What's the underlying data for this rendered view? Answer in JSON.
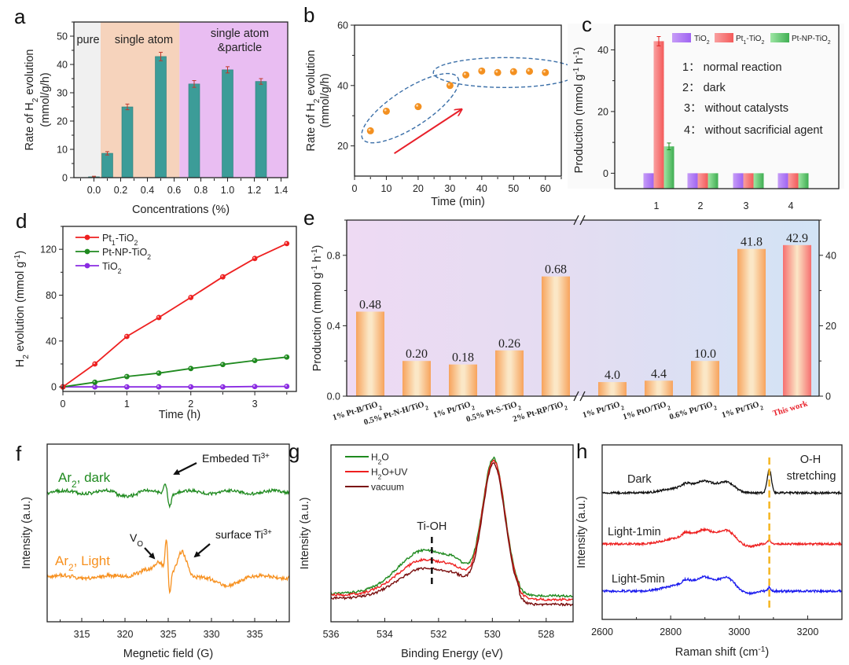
{
  "panels": [
    {
      "id": "a",
      "letter": "a",
      "chart_data": {
        "type": "bar",
        "title": "",
        "xlabel": "Concentrations (%)",
        "ylabel_line1": "Rate of H2 evolution",
        "ylabel_line2": "(mmol/g/h)",
        "xlim": [
          -0.15,
          1.45
        ],
        "ylim": [
          0,
          55
        ],
        "xticks": [
          "0.0",
          "0.2",
          "0.4",
          "0.6",
          "0.8",
          "1.0",
          "1.2",
          "1.4"
        ],
        "yticks": [
          "0",
          "10",
          "20",
          "30",
          "40",
          "50"
        ],
        "regions": [
          {
            "label": "pure",
            "from": -0.15,
            "to": 0.05,
            "color": "#f0f0f0"
          },
          {
            "label": "single atom",
            "from": 0.05,
            "to": 0.64,
            "color": "#f6d3bc"
          },
          {
            "label_line1": "single atom",
            "label_line2": "&particle",
            "from": 0.64,
            "to": 1.45,
            "color": "#e9bdf2"
          }
        ],
        "x": [
          0.0,
          0.1,
          0.25,
          0.5,
          0.75,
          1.0,
          1.25
        ],
        "values": [
          0.3,
          8.6,
          25.0,
          42.8,
          33.1,
          38.1,
          34.0
        ],
        "errors": [
          0.2,
          0.6,
          1.0,
          1.5,
          1.2,
          1.1,
          1.0
        ],
        "bar_color": "#3c9c98",
        "error_color": "#c0392b"
      }
    },
    {
      "id": "b",
      "letter": "b",
      "chart_data": {
        "type": "scatter",
        "xlabel": "Time (min)",
        "ylabel_line1": "Rate of H2 evolution",
        "ylabel_line2": "(mmol/g/h)",
        "xlim": [
          0,
          65
        ],
        "ylim": [
          10,
          60
        ],
        "xticks": [
          "0",
          "10",
          "20",
          "30",
          "40",
          "50",
          "60"
        ],
        "yticks": [
          "20",
          "40",
          "60"
        ],
        "x": [
          5,
          10,
          20,
          30,
          35,
          40,
          45,
          50,
          55,
          60
        ],
        "values": [
          25.0,
          31.5,
          33.0,
          40.0,
          43.5,
          44.8,
          44.3,
          44.6,
          44.7,
          44.3
        ],
        "marker_color": "#f39020",
        "annotations": [
          "dashed ellipse around 5–30 min points",
          "dashed ellipse around 35–60 min points",
          "red arrow indicating increasing trend"
        ],
        "ellipse_color": "#3b6fa8",
        "arrow_color": "#e8202a"
      }
    },
    {
      "id": "c",
      "letter": "c",
      "chart_data": {
        "type": "bar",
        "ylabel": "Production (mmol g-1 h-1)",
        "categories": [
          "1",
          "2",
          "3",
          "4"
        ],
        "ylim": [
          -5,
          48
        ],
        "yticks": [
          "0",
          "20",
          "40"
        ],
        "series": [
          {
            "name": "TiO2",
            "values": [
              0,
              0,
              0,
              0
            ],
            "color": "#b07af5"
          },
          {
            "name": "Pt1-TiO2",
            "values": [
              42.8,
              0,
              0,
              0
            ],
            "errors": [
              1.5,
              0,
              0,
              0
            ],
            "color": "#f86a6a"
          },
          {
            "name": "Pt-NP-TiO2",
            "values": [
              8.7,
              0,
              0,
              0
            ],
            "errors": [
              1.1,
              0,
              0,
              0
            ],
            "color": "#5cc66e"
          }
        ],
        "legend_placement": "top-right",
        "notes": [
          "1: normal reaction",
          "2: dark",
          "3: without catalysts",
          "4: without sacrificial agent"
        ]
      }
    },
    {
      "id": "d",
      "letter": "d",
      "chart_data": {
        "type": "line",
        "xlabel": "Time (h)",
        "ylabel": "H2 evolution (mmol g-1)",
        "xlim": [
          0,
          3.65
        ],
        "ylim": [
          -4,
          140
        ],
        "xticks": [
          "0",
          "1",
          "2",
          "3"
        ],
        "yticks": [
          "0",
          "40",
          "80",
          "120"
        ],
        "x": [
          0,
          0.5,
          1.0,
          1.5,
          2.0,
          2.5,
          3.0,
          3.5
        ],
        "series": [
          {
            "name": "Pt1-TiO2",
            "values": [
              0,
              20,
              44,
              60.5,
              78,
              96,
              112,
              125
            ],
            "color": "#ee2020"
          },
          {
            "name": "Pt-NP-TiO2",
            "values": [
              0,
              4,
              9,
              12,
              16,
              19.5,
              23,
              26
            ],
            "color": "#1f8a1f"
          },
          {
            "name": "TiO2",
            "values": [
              0,
              0,
              0,
              0,
              0,
              0,
              0.3,
              0.4
            ],
            "color": "#8a2be2"
          }
        ],
        "legend_placement": "top-left"
      }
    },
    {
      "id": "e",
      "letter": "e",
      "chart_data": {
        "type": "bar",
        "ylabel": "Production (mmol g-1 h-1)",
        "left_axis": {
          "ylim": [
            0,
            1.0
          ],
          "yticks": [
            "0.0",
            "0.4",
            "0.8"
          ]
        },
        "right_axis": {
          "ylim": [
            0,
            50
          ],
          "yticks": [
            "0",
            "20",
            "40"
          ]
        },
        "axis_break": "after 5th category",
        "categories": [
          "1% Pt-B/TiO2",
          "0.5% Pt-N-H/TiO2",
          "1% Pt/TiO2",
          "0.5% Pt-S-TiO2",
          "2% Pt-RP/TiO2",
          "1% Pt/TiO2",
          "1% PtO/TiO2",
          "0.6% Pt/TiO2",
          "1% Pt/TiO2",
          "This work"
        ],
        "axis": [
          "left",
          "left",
          "left",
          "left",
          "left",
          "right",
          "right",
          "right",
          "right",
          "right"
        ],
        "values": [
          0.48,
          0.2,
          0.18,
          0.26,
          0.68,
          4.0,
          4.4,
          10.0,
          41.8,
          42.9
        ],
        "labels": [
          "0.48",
          "0.20",
          "0.18",
          "0.26",
          "0.68",
          "4.0",
          "4.4",
          "10.0",
          "41.8",
          "42.9"
        ],
        "highlight": "This work",
        "highlight_color": "#e8202a",
        "bar_color": "#f7a35c",
        "highlight_bar_color": "#f66f6f"
      }
    },
    {
      "id": "f",
      "letter": "f",
      "chart_data": {
        "type": "line",
        "xlabel": "Megnetic field (G)",
        "ylabel": "Intensity (a.u.)",
        "xlim": [
          311,
          339
        ],
        "xticks": [
          "315",
          "320",
          "325",
          "330",
          "335"
        ],
        "series": [
          {
            "name": "Ar2, dark",
            "color": "#1f8a1f"
          },
          {
            "name": "Ar2, Light",
            "color": "#f7901e"
          }
        ],
        "annotations": [
          "Embeded Ti3+",
          "VO",
          "surface Ti3+"
        ]
      }
    },
    {
      "id": "g",
      "letter": "g",
      "chart_data": {
        "type": "line",
        "xlabel": "Binding Energy (eV)",
        "ylabel": "Intensity (a.u.)",
        "xlim": [
          536,
          527
        ],
        "xticks": [
          "536",
          "534",
          "532",
          "530",
          "528"
        ],
        "series": [
          {
            "name": "H2O",
            "color": "#1f8a1f"
          },
          {
            "name": "H2O+UV",
            "color": "#ee2020"
          },
          {
            "name": "vacuum",
            "color": "#7a0d0d"
          }
        ],
        "annotations": [
          "Ti-OH at 532.2 eV"
        ],
        "legend_placement": "top-left"
      }
    },
    {
      "id": "h",
      "letter": "h",
      "chart_data": {
        "type": "line",
        "xlabel": "Raman shift (cm-1)",
        "ylabel": "Intensity (a.u.)",
        "xlim": [
          2600,
          3300
        ],
        "xticks": [
          "2600",
          "2800",
          "3000",
          "3200"
        ],
        "series": [
          {
            "name": "Dark",
            "color": "#111111"
          },
          {
            "name": "Light-1min",
            "color": "#ee2020"
          },
          {
            "name": "Light-5min",
            "color": "#1a1aee"
          }
        ],
        "annotations": [
          "O-H stretching at ~3090 cm-1"
        ],
        "marker_line_color": "#f5b521"
      }
    }
  ],
  "text": {
    "a_region_pure": "pure",
    "a_region_single": "single atom",
    "a_region_mixed1": "single atom",
    "a_region_mixed2": "&particle",
    "c_note1": "1： normal reaction",
    "c_note2": "2： dark",
    "c_note3": "3： without catalysts",
    "c_note4": "4： without sacrificial agent",
    "f_embeded": "Embeded Ti",
    "f_surface": "surface Ti",
    "f_sup": "3+",
    "f_vo": "V",
    "f_vo_sub": "O",
    "f_dark": "Ar",
    "f_dark_tail": ", dark",
    "f_light": "Ar",
    "f_light_tail": ", Light",
    "f_sub2": "2",
    "g_tioh": "Ti-OH",
    "h_oh1": "O-H",
    "h_oh2": "stretching"
  }
}
